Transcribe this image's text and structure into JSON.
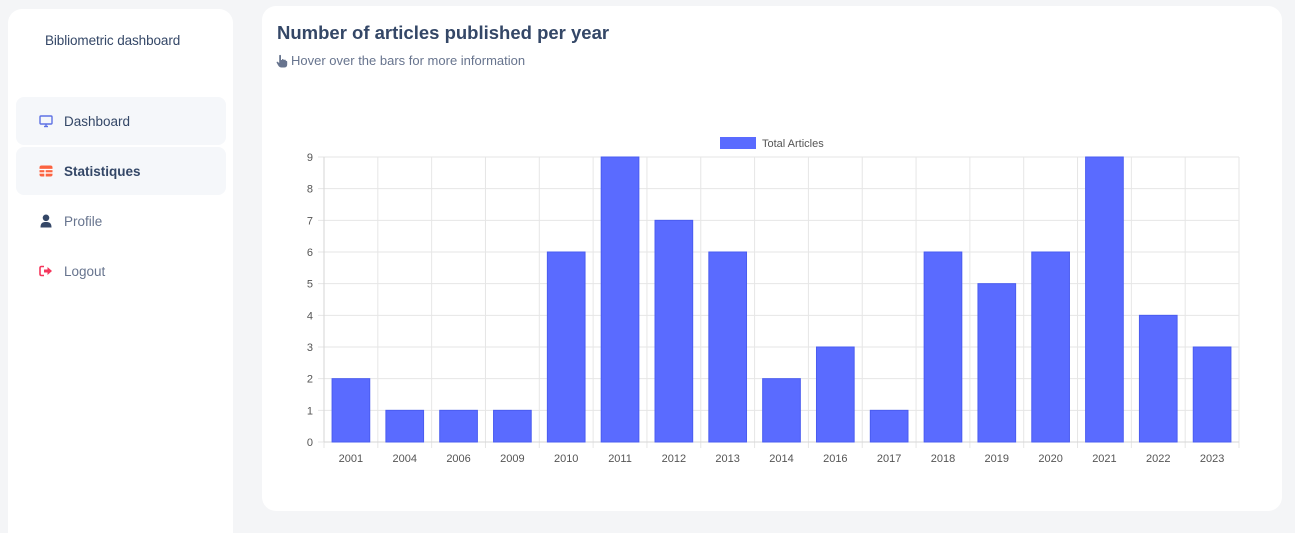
{
  "sidebar": {
    "brand": "Bibliometric dashboard",
    "items": [
      {
        "label": "Dashboard",
        "icon": "monitor-icon",
        "color": "#5e72e4"
      },
      {
        "label": "Statistiques",
        "icon": "table-icon",
        "color": "#fb6340"
      },
      {
        "label": "Profile",
        "icon": "user-icon",
        "color": "#344767"
      },
      {
        "label": "Logout",
        "icon": "logout-icon",
        "color": "#f5365c"
      }
    ]
  },
  "card": {
    "title": "Number of articles published per year",
    "subtitle": "Hover over the bars for more information"
  },
  "chart_data": {
    "type": "bar",
    "categories": [
      "2001",
      "2004",
      "2006",
      "2009",
      "2010",
      "2011",
      "2012",
      "2013",
      "2014",
      "2016",
      "2017",
      "2018",
      "2019",
      "2020",
      "2021",
      "2022",
      "2023"
    ],
    "series": [
      {
        "name": "Total Articles",
        "values": [
          2,
          1,
          1,
          1,
          6,
          9,
          7,
          6,
          2,
          3,
          1,
          6,
          5,
          6,
          9,
          4,
          3
        ],
        "color": "#5a6bff"
      }
    ],
    "ylim": [
      0,
      9
    ],
    "yticks": [
      0,
      1,
      2,
      3,
      4,
      5,
      6,
      7,
      8,
      9
    ],
    "grid": true,
    "legend": "top-center"
  }
}
